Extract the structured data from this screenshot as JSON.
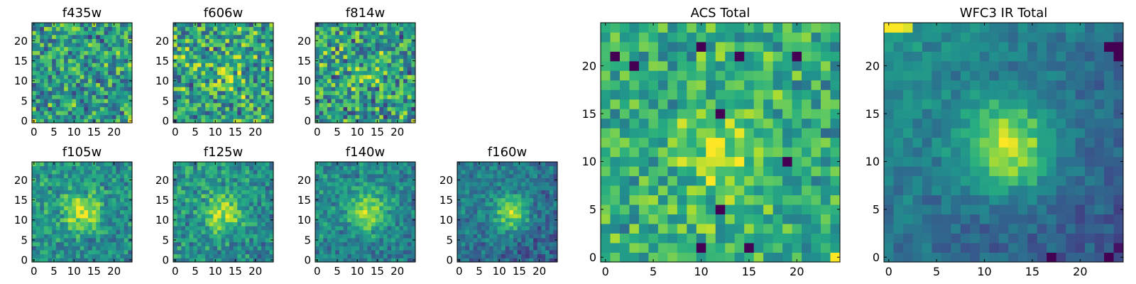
{
  "figure": {
    "colormap": "viridis",
    "colormap_stops": [
      "#440154",
      "#472c7a",
      "#3b518b",
      "#2c718e",
      "#21908d",
      "#27ad81",
      "#5cc863",
      "#aadc32",
      "#fde725"
    ]
  },
  "chart_data": [
    {
      "type": "heatmap",
      "title": "f435w",
      "grid_size": 25,
      "xlim": [
        0,
        24
      ],
      "ylim": [
        0,
        24
      ],
      "xticks": [
        0,
        5,
        10,
        15,
        20
      ],
      "yticks": [
        0,
        5,
        10,
        15,
        20
      ],
      "pattern": {
        "seed": 11,
        "noise": 0.55,
        "peak": 0.05,
        "cx": 12,
        "cy": 12,
        "sigma": 3.5,
        "base": 0.55,
        "gradient": 0.0
      },
      "notable_cells": [
        {
          "x": 0,
          "y": 0,
          "value": 1.0
        },
        {
          "x": 24,
          "y": 0,
          "value": 1.0
        }
      ]
    },
    {
      "type": "heatmap",
      "title": "f606w",
      "grid_size": 25,
      "xlim": [
        0,
        24
      ],
      "ylim": [
        0,
        24
      ],
      "xticks": [
        0,
        5,
        10,
        15,
        20
      ],
      "yticks": [
        0,
        5,
        10,
        15,
        20
      ],
      "pattern": {
        "seed": 23,
        "noise": 0.6,
        "peak": 0.15,
        "cx": 13,
        "cy": 11,
        "sigma": 3.0,
        "base": 0.58,
        "gradient": 0.0
      }
    },
    {
      "type": "heatmap",
      "title": "f814w",
      "grid_size": 25,
      "xlim": [
        0,
        24
      ],
      "ylim": [
        0,
        24
      ],
      "xticks": [
        0,
        5,
        10,
        15,
        20
      ],
      "yticks": [
        0,
        5,
        10,
        15,
        20
      ],
      "pattern": {
        "seed": 37,
        "noise": 0.6,
        "peak": 0.2,
        "cx": 13,
        "cy": 12,
        "sigma": 2.8,
        "base": 0.55,
        "gradient": 0.0
      }
    },
    {
      "type": "heatmap",
      "title": "f105w",
      "grid_size": 25,
      "xlim": [
        0,
        24
      ],
      "ylim": [
        0,
        24
      ],
      "xticks": [
        0,
        5,
        10,
        15,
        20
      ],
      "yticks": [
        0,
        5,
        10,
        15,
        20
      ],
      "pattern": {
        "seed": 41,
        "noise": 0.35,
        "peak": 0.45,
        "cx": 12,
        "cy": 12,
        "sigma": 3.2,
        "base": 0.5,
        "gradient": 0.1
      }
    },
    {
      "type": "heatmap",
      "title": "f125w",
      "grid_size": 25,
      "xlim": [
        0,
        24
      ],
      "ylim": [
        0,
        24
      ],
      "xticks": [
        0,
        5,
        10,
        15,
        20
      ],
      "yticks": [
        0,
        5,
        10,
        15,
        20
      ],
      "pattern": {
        "seed": 53,
        "noise": 0.35,
        "peak": 0.4,
        "cx": 12,
        "cy": 12,
        "sigma": 3.2,
        "base": 0.5,
        "gradient": 0.1
      }
    },
    {
      "type": "heatmap",
      "title": "f140w",
      "grid_size": 25,
      "xlim": [
        0,
        24
      ],
      "ylim": [
        0,
        24
      ],
      "xticks": [
        0,
        5,
        10,
        15,
        20
      ],
      "yticks": [
        0,
        5,
        10,
        15,
        20
      ],
      "pattern": {
        "seed": 67,
        "noise": 0.3,
        "peak": 0.45,
        "cx": 13,
        "cy": 12,
        "sigma": 3.4,
        "base": 0.45,
        "gradient": 0.12
      }
    },
    {
      "type": "heatmap",
      "title": "f160w",
      "grid_size": 25,
      "xlim": [
        0,
        24
      ],
      "ylim": [
        0,
        24
      ],
      "xticks": [
        0,
        5,
        10,
        15,
        20
      ],
      "yticks": [
        0,
        5,
        10,
        15,
        20
      ],
      "pattern": {
        "seed": 79,
        "noise": 0.28,
        "peak": 0.5,
        "cx": 13,
        "cy": 12,
        "sigma": 3.0,
        "base": 0.38,
        "gradient": 0.15
      }
    },
    {
      "type": "heatmap",
      "title": "ACS Total",
      "grid_size": 25,
      "xlim": [
        0,
        24
      ],
      "ylim": [
        0,
        24
      ],
      "xticks": [
        0,
        5,
        10,
        15,
        20
      ],
      "yticks": [
        0,
        5,
        10,
        15,
        20
      ],
      "pattern": {
        "seed": 97,
        "noise": 0.4,
        "peak": 0.3,
        "cx": 12,
        "cy": 11,
        "sigma": 3.0,
        "base": 0.62,
        "gradient": 0.0
      },
      "notable_cells": [
        {
          "x": 1,
          "y": 21,
          "value": 0.0
        },
        {
          "x": 3,
          "y": 20,
          "value": 0.0
        },
        {
          "x": 10,
          "y": 22,
          "value": 0.0
        },
        {
          "x": 14,
          "y": 21,
          "value": 0.0
        },
        {
          "x": 20,
          "y": 21,
          "value": 0.0
        },
        {
          "x": 12,
          "y": 15,
          "value": 0.0
        },
        {
          "x": 19,
          "y": 10,
          "value": 0.0
        },
        {
          "x": 12,
          "y": 5,
          "value": 0.0
        },
        {
          "x": 10,
          "y": 1,
          "value": 0.0
        },
        {
          "x": 15,
          "y": 1,
          "value": 0.0
        },
        {
          "x": 24,
          "y": 0,
          "value": 1.0
        }
      ]
    },
    {
      "type": "heatmap",
      "title": "WFC3 IR Total",
      "grid_size": 25,
      "xlim": [
        0,
        24
      ],
      "ylim": [
        0,
        24
      ],
      "xticks": [
        0,
        5,
        10,
        15,
        20
      ],
      "yticks": [
        0,
        5,
        10,
        15,
        20
      ],
      "pattern": {
        "seed": 113,
        "noise": 0.18,
        "peak": 0.55,
        "cx": 12.5,
        "cy": 11.5,
        "sigma": 3.2,
        "base": 0.38,
        "gradient": 0.25
      },
      "notable_cells": [
        {
          "x": 23,
          "y": 22,
          "value": 0.0
        },
        {
          "x": 24,
          "y": 22,
          "value": 0.0
        },
        {
          "x": 24,
          "y": 21,
          "value": 0.0
        },
        {
          "x": 17,
          "y": 0,
          "value": 0.0
        },
        {
          "x": 23,
          "y": 0,
          "value": 0.0
        },
        {
          "x": 24,
          "y": 1,
          "value": 0.05
        },
        {
          "x": 0,
          "y": 24,
          "value": 1.0
        },
        {
          "x": 1,
          "y": 24,
          "value": 1.0
        },
        {
          "x": 2,
          "y": 24,
          "value": 0.95
        }
      ]
    }
  ]
}
